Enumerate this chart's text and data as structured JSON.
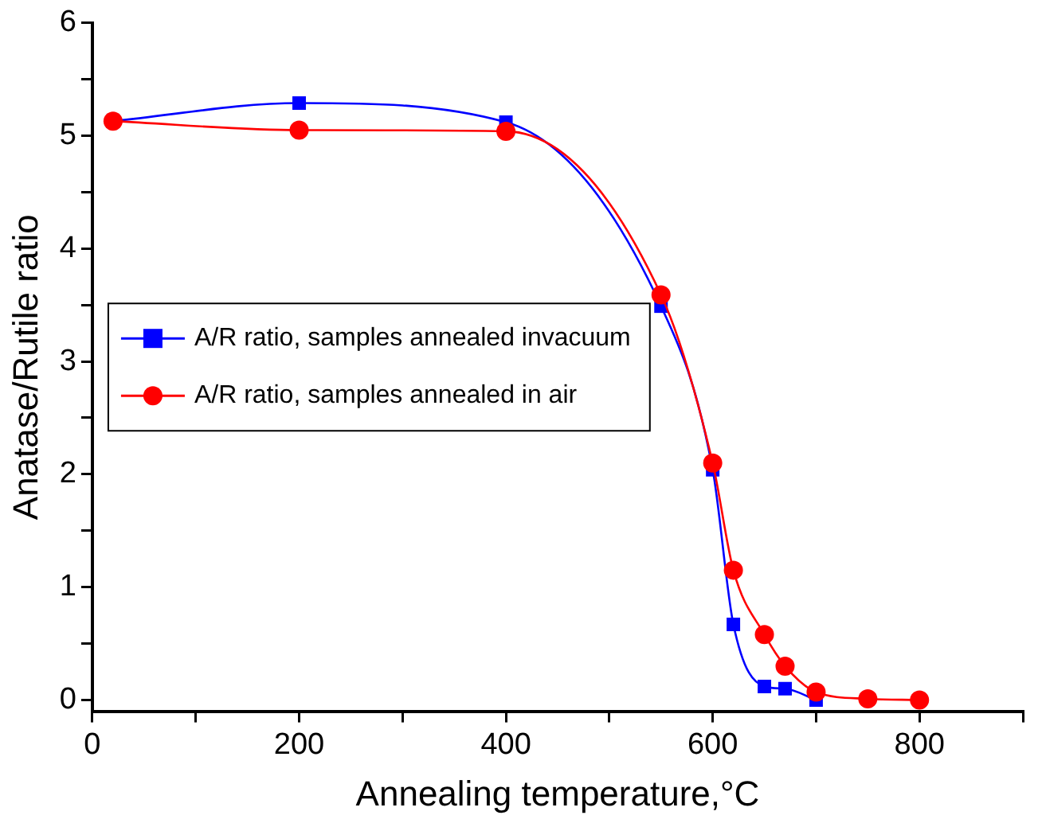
{
  "chart_data": {
    "type": "line",
    "xlabel": "Annealing temperature,°C",
    "ylabel": "Anatase/Rutile ratio",
    "series": [
      {
        "name": "A/R ratio, samples annealed invacuum",
        "color": "#0000ff",
        "marker": "square",
        "x": [
          20,
          200,
          400,
          550,
          600,
          620,
          650,
          670,
          700
        ],
        "values": [
          5.13,
          5.29,
          5.12,
          3.49,
          2.04,
          0.67,
          0.12,
          0.1,
          0.0
        ]
      },
      {
        "name": "A/R ratio, samples annealed in air",
        "color": "#ff0000",
        "marker": "circle",
        "x": [
          20,
          200,
          400,
          550,
          600,
          620,
          650,
          670,
          700,
          750,
          800
        ],
        "values": [
          5.13,
          5.05,
          5.04,
          3.59,
          2.1,
          1.15,
          0.58,
          0.3,
          0.07,
          0.01,
          0.0
        ]
      }
    ],
    "xlim": [
      0,
      900
    ],
    "ylim": [
      -0.1,
      6
    ],
    "xticks": [
      0,
      {
        "value": 100,
        "label": null
      },
      200,
      {
        "value": 300,
        "label": null
      },
      400,
      {
        "value": 500,
        "label": null
      },
      600,
      {
        "value": 700,
        "label": null
      },
      800,
      {
        "value": 900,
        "label": null
      }
    ],
    "yticks": [
      0,
      {
        "value": 0.5,
        "label": null
      },
      1,
      {
        "value": 1.5,
        "label": null
      },
      2,
      {
        "value": 2.5,
        "label": null
      },
      3,
      {
        "value": 3.5,
        "label": null
      },
      4,
      {
        "value": 4.5,
        "label": null
      },
      5,
      {
        "value": 5.5,
        "label": null
      },
      6
    ],
    "grid": false,
    "legend": "center left",
    "line_style": "solid"
  }
}
